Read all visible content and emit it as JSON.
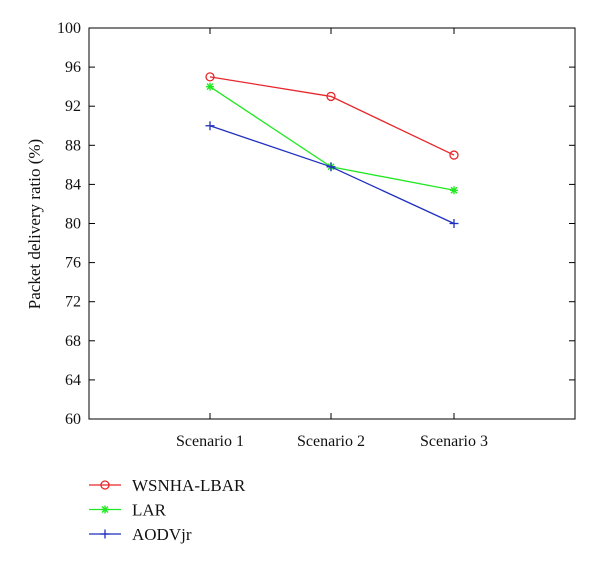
{
  "chart_data": {
    "type": "line",
    "title": "",
    "xlabel": "",
    "ylabel": "Packet delivery ratio (%)",
    "categories": [
      "Scenario 1",
      "Scenario 2",
      "Scenario 3"
    ],
    "ylim": [
      60,
      100
    ],
    "yticks": [
      60,
      64,
      68,
      72,
      76,
      80,
      84,
      88,
      92,
      96,
      100
    ],
    "grid": false,
    "legend_position": "below",
    "series": [
      {
        "name": "WSNHA-LBAR",
        "values": [
          95,
          93,
          87
        ],
        "color": "#e8262a",
        "marker": "circle"
      },
      {
        "name": "LAR",
        "values": [
          94,
          85.8,
          83.4
        ],
        "color": "#22e822",
        "marker": "star"
      },
      {
        "name": "AODVjr",
        "values": [
          90,
          85.8,
          80
        ],
        "color": "#1f2fbf",
        "marker": "plus"
      }
    ]
  }
}
